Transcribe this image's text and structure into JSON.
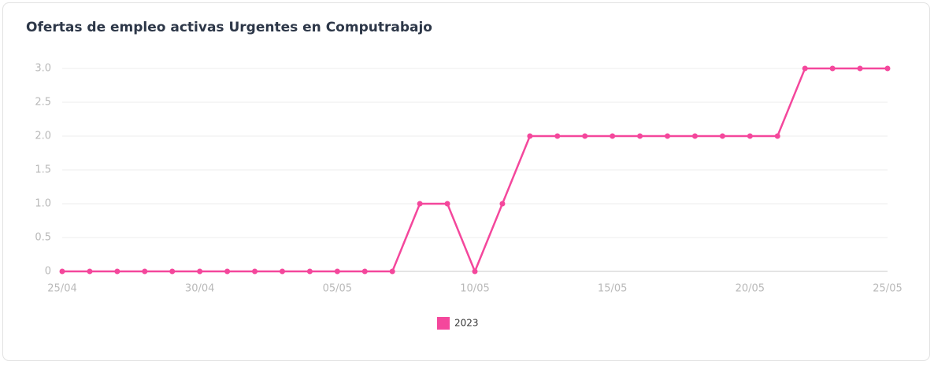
{
  "chart_data": {
    "type": "line",
    "title": "Ofertas de empleo activas Urgentes en Computrabajo",
    "categories": [
      "25/04",
      null,
      null,
      null,
      null,
      "30/04",
      null,
      null,
      null,
      null,
      "05/05",
      null,
      null,
      null,
      null,
      "10/05",
      null,
      null,
      null,
      null,
      "15/05",
      null,
      null,
      null,
      null,
      "20/05",
      null,
      null,
      null,
      null,
      "25/05"
    ],
    "series": [
      {
        "name": "2023",
        "color": "#f4479c",
        "values": [
          0,
          0,
          0,
          0,
          0,
          0,
          0,
          0,
          0,
          0,
          0,
          0,
          0,
          1,
          1,
          0,
          1,
          2,
          2,
          2,
          2,
          2,
          2,
          2,
          2,
          2,
          2,
          3,
          3,
          3,
          3
        ]
      }
    ],
    "ylim": [
      0,
      3
    ],
    "yticks": [
      0,
      0.5,
      {
        "value": 1,
        "label": "1.0"
      },
      {
        "value": 1.5,
        "label": "1.5"
      },
      {
        "value": 2,
        "label": "2.0"
      },
      {
        "value": 2.5,
        "label": "2.5"
      },
      {
        "value": 3,
        "label": "3.0"
      }
    ],
    "grid": true,
    "legend": "bottom"
  }
}
